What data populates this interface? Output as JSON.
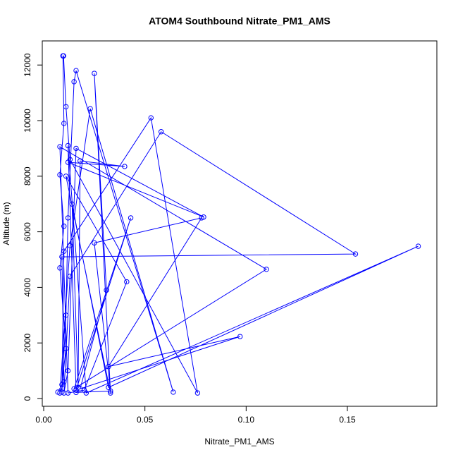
{
  "chart_data": {
    "type": "line",
    "title": "ATOM4 Southbound Nitrate_PM1_AMS",
    "xlabel": "Nitrate_PM1_AMS",
    "ylabel": "Altitude (m)",
    "color": "#0000ff",
    "x": [
      0.007,
      0.009,
      0.011,
      0.008,
      0.01,
      0.008,
      0.01,
      0.0095,
      0.0098,
      0.011,
      0.013,
      0.076,
      0.053,
      0.01,
      0.009,
      0.011,
      0.012,
      0.015,
      0.016,
      0.064,
      0.023,
      0.013,
      0.008,
      0.01,
      0.009,
      0.154,
      0.058,
      0.013,
      0.01,
      0.012,
      0.016,
      0.079,
      0.012,
      0.04,
      0.018,
      0.017,
      0.014,
      0.032,
      0.185,
      0.021,
      0.012,
      0.016,
      0.043,
      0.015,
      0.11,
      0.008,
      0.012,
      0.02,
      0.041,
      0.011,
      0.033,
      0.025,
      0.031,
      0.018,
      0.097,
      0.032,
      0.078,
      0.025,
      0.033,
      0.016
    ],
    "values": [
      230,
      500,
      1800,
      4700,
      6200,
      8050,
      9900,
      12330,
      12330,
      10500,
      8600,
      200,
      10100,
      5300,
      230,
      3000,
      6500,
      11400,
      11800,
      230,
      10430,
      5500,
      200,
      600,
      5100,
      5200,
      9600,
      4400,
      200,
      1000,
      9000,
      6530,
      8500,
      8350,
      8550,
      400,
      7000,
      400,
      5480,
      200,
      9100,
      300,
      6500,
      350,
      4650,
      9060,
      200,
      300,
      4200,
      8000,
      200,
      11700,
      3900,
      350,
      2230,
      1150,
      6500,
      5600,
      270,
      220
    ],
    "xlim": [
      -0.0007,
      0.1942
    ],
    "ylim": [
      -279,
      12868
    ],
    "xticks": [
      {
        "value": 0,
        "label": "0.00"
      },
      {
        "value": 0.05,
        "label": "0.05"
      },
      {
        "value": 0.1,
        "label": "0.10"
      },
      {
        "value": 0.15,
        "label": "0.15"
      }
    ],
    "yticks": [
      0,
      2000,
      4000,
      6000,
      8000,
      10000,
      12000
    ],
    "grid": false
  }
}
